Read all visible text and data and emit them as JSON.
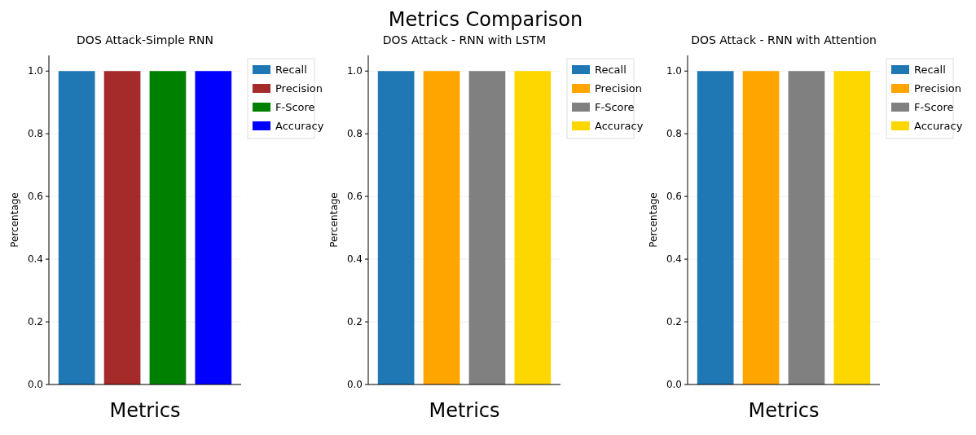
{
  "chart_data": [
    {
      "type": "bar",
      "title": "DOS Attack-Simple RNN",
      "xlabel": "Metrics",
      "ylabel": "Percentage",
      "categories": [
        null
      ],
      "series": [
        {
          "name": "Recall",
          "color": "#1f77b4",
          "values": [
            1.0
          ]
        },
        {
          "name": "Precision",
          "color": "#a52a2a",
          "values": [
            1.0
          ]
        },
        {
          "name": "F-Score",
          "color": "#008000",
          "values": [
            1.0
          ]
        },
        {
          "name": "Accuracy",
          "color": "#0000ff",
          "values": [
            1.0
          ]
        }
      ],
      "ylim": [
        0,
        1.05
      ],
      "yticks": [
        {
          "value": 0,
          "label": "0.0"
        },
        {
          "value": 0.2,
          "label": "0.2"
        },
        {
          "value": 0.4,
          "label": "0.4"
        },
        {
          "value": 0.6,
          "label": "0.6"
        },
        {
          "value": 0.8,
          "label": "0.8"
        },
        {
          "value": 1,
          "label": "1.0"
        }
      ],
      "grid": "y",
      "legend": "right"
    },
    {
      "type": "bar",
      "title": "DOS Attack - RNN with LSTM",
      "xlabel": "Metrics",
      "ylabel": "Percentage",
      "annotations": [
        "Metrics Comparison"
      ],
      "categories": [
        null
      ],
      "series": [
        {
          "name": "Recall",
          "color": "#1f77b4",
          "values": [
            1.0
          ]
        },
        {
          "name": "Precision",
          "color": "#ffa500",
          "values": [
            1.0
          ]
        },
        {
          "name": "F-Score",
          "color": "#808080",
          "values": [
            1.0
          ]
        },
        {
          "name": "Accuracy",
          "color": "#ffd700",
          "values": [
            1.0
          ]
        }
      ],
      "ylim": [
        0,
        1.05
      ],
      "yticks": [
        {
          "value": 0,
          "label": "0.0"
        },
        {
          "value": 0.2,
          "label": "0.2"
        },
        {
          "value": 0.4,
          "label": "0.4"
        },
        {
          "value": 0.6,
          "label": "0.6"
        },
        {
          "value": 0.8,
          "label": "0.8"
        },
        {
          "value": 1,
          "label": "1.0"
        }
      ],
      "grid": "y",
      "legend": "right"
    },
    {
      "type": "bar",
      "title": "DOS Attack - RNN with Attention",
      "xlabel": "Metrics",
      "ylabel": "Percentage",
      "categories": [
        null
      ],
      "series": [
        {
          "name": "Recall",
          "color": "#1f77b4",
          "values": [
            1.0
          ]
        },
        {
          "name": "Precision",
          "color": "#ffa500",
          "values": [
            1.0
          ]
        },
        {
          "name": "F-Score",
          "color": "#808080",
          "values": [
            1.0
          ]
        },
        {
          "name": "Accuracy",
          "color": "#ffd700",
          "values": [
            1.0
          ]
        }
      ],
      "ylim": [
        0,
        1.05
      ],
      "yticks": [
        {
          "value": 0,
          "label": "0.0"
        },
        {
          "value": 0.2,
          "label": "0.2"
        },
        {
          "value": 0.4,
          "label": "0.4"
        },
        {
          "value": 0.6,
          "label": "0.6"
        },
        {
          "value": 0.8,
          "label": "0.8"
        },
        {
          "value": 1,
          "label": "1.0"
        }
      ],
      "grid": "y",
      "legend": "right"
    }
  ]
}
